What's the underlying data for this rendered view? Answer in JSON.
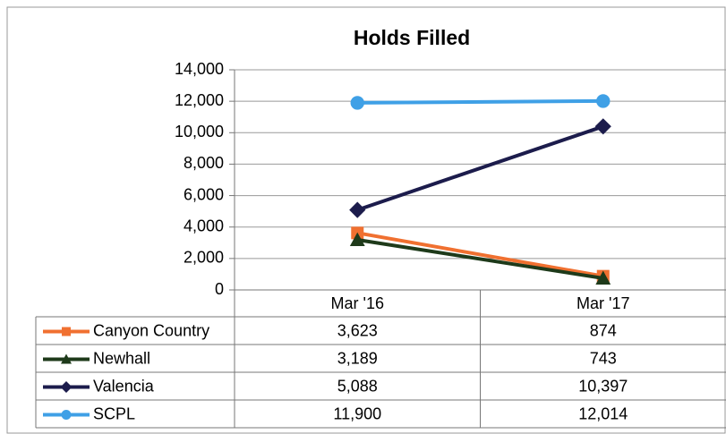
{
  "chart_data": {
    "type": "line",
    "title": "Holds Filled",
    "categories": [
      "Mar '16",
      "Mar '17"
    ],
    "series": [
      {
        "name": "Canyon Country",
        "color": "#f07030",
        "marker": "square",
        "values": [
          3623,
          874
        ],
        "value_labels": [
          "3,623",
          "874"
        ]
      },
      {
        "name": "Newhall",
        "color": "#1e3a1a",
        "marker": "triangle",
        "values": [
          3189,
          743
        ],
        "value_labels": [
          "3,189",
          "743"
        ]
      },
      {
        "name": "Valencia",
        "color": "#1c1c4c",
        "marker": "diamond",
        "values": [
          5088,
          10397
        ],
        "value_labels": [
          "5,088",
          "10,397"
        ]
      },
      {
        "name": "SCPL",
        "color": "#3fa0e6",
        "marker": "circle",
        "values": [
          11900,
          12014
        ],
        "value_labels": [
          "11,900",
          "12,014"
        ]
      }
    ],
    "ylim": [
      0,
      14000
    ],
    "yticks": [
      0,
      {
        "value": 2000,
        "label": "2,000"
      },
      {
        "value": 4000,
        "label": "4,000"
      },
      {
        "value": 6000,
        "label": "6,000"
      },
      {
        "value": 8000,
        "label": "8,000"
      },
      {
        "value": 10000,
        "label": "10,000"
      },
      {
        "value": 12000,
        "label": "12,000"
      },
      {
        "value": 14000,
        "label": "14,000"
      }
    ],
    "grid": true
  }
}
